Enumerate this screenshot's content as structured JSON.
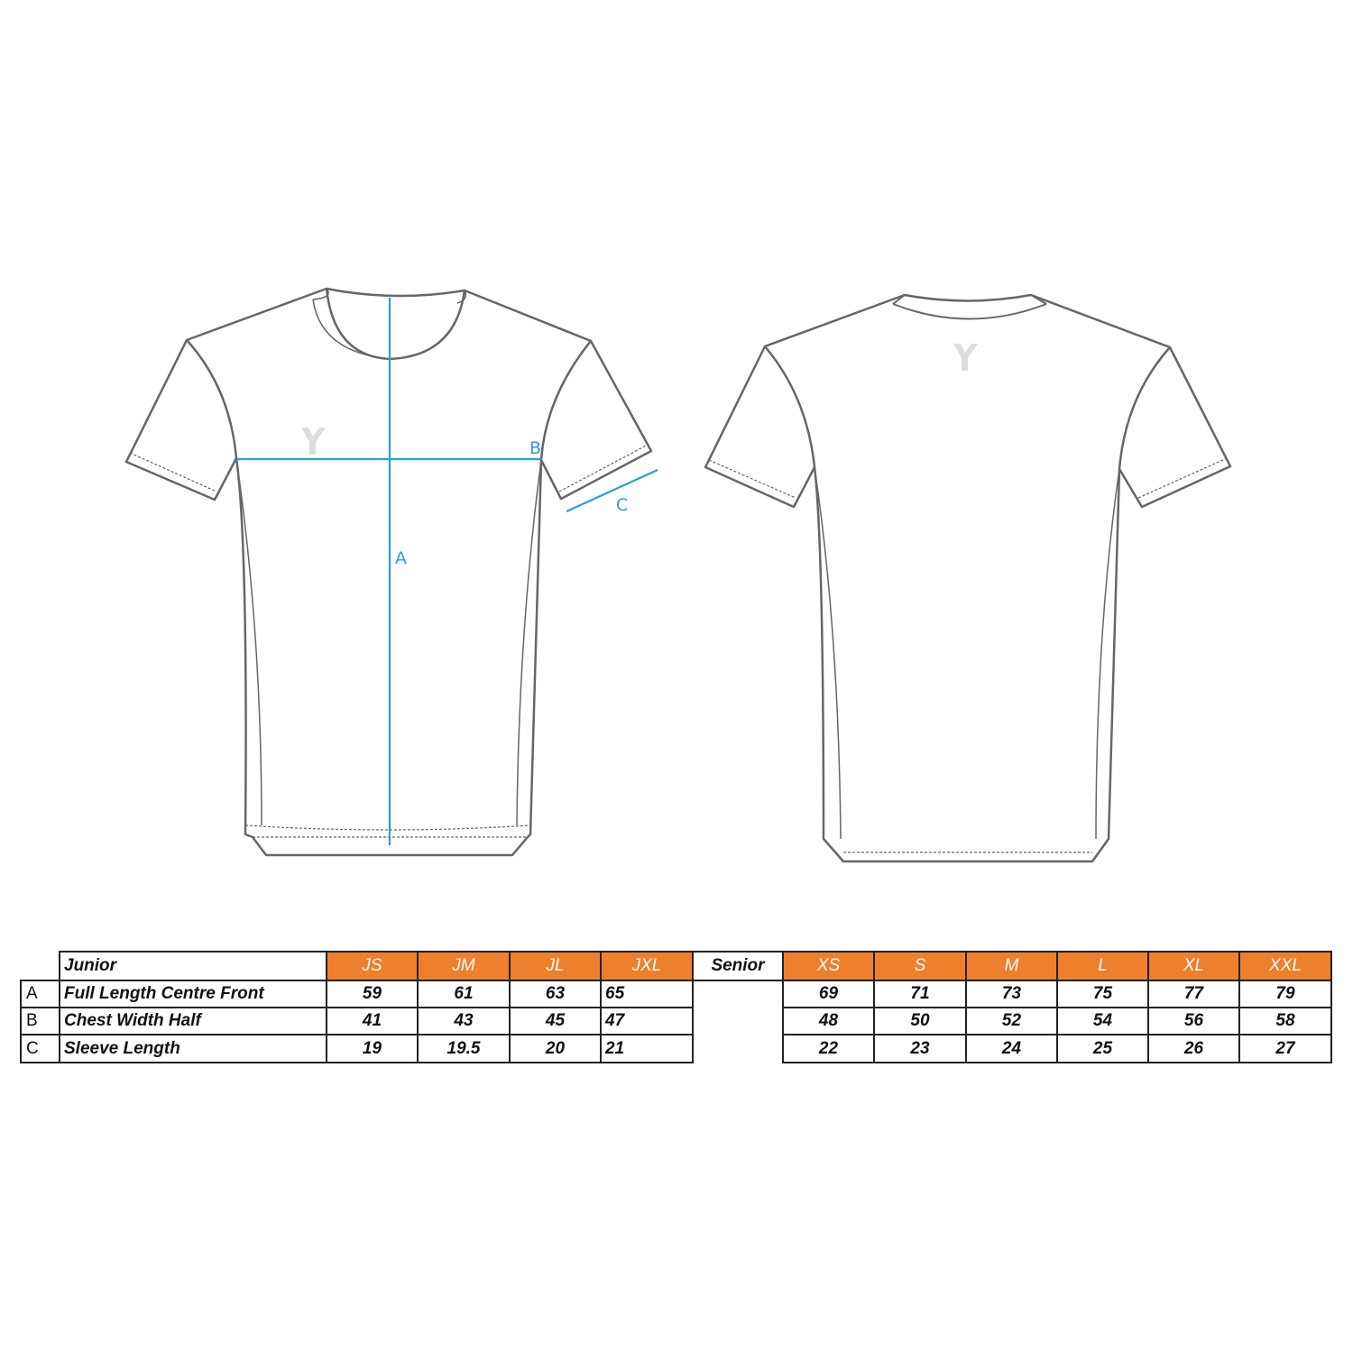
{
  "diagram": {
    "measure_labels": {
      "a": "A",
      "b": "B",
      "c": "C"
    },
    "accent_color": "#2a9fcf",
    "logo": "Y"
  },
  "table": {
    "header_color": "#ee7f2d",
    "junior": {
      "title": "Junior",
      "sizes": [
        "JS",
        "JM",
        "JL",
        "JXL"
      ],
      "rows": [
        {
          "key": "A",
          "label": "Full Length Centre Front",
          "values": [
            "59",
            "61",
            "63",
            "65"
          ]
        },
        {
          "key": "B",
          "label": "Chest Width Half",
          "values": [
            "41",
            "43",
            "45",
            "47"
          ]
        },
        {
          "key": "C",
          "label": "Sleeve Length",
          "values": [
            "19",
            "19.5",
            "20",
            "21"
          ]
        }
      ]
    },
    "senior": {
      "title": "Senior",
      "sizes": [
        "XS",
        "S",
        "M",
        "L",
        "XL",
        "XXL"
      ],
      "rows": [
        {
          "values": [
            "69",
            "71",
            "73",
            "75",
            "77",
            "79"
          ]
        },
        {
          "values": [
            "48",
            "50",
            "52",
            "54",
            "56",
            "58"
          ]
        },
        {
          "values": [
            "22",
            "23",
            "24",
            "25",
            "26",
            "27"
          ]
        }
      ]
    }
  }
}
